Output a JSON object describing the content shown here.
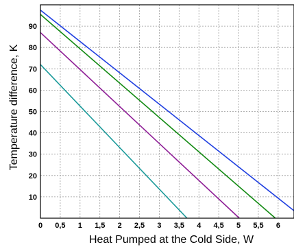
{
  "chart_data": {
    "type": "line",
    "title": "",
    "xlabel": "Heat Pumped at the Cold Side, W",
    "ylabel": "Temperature difference, K",
    "xlim": [
      0,
      6.4
    ],
    "ylim": [
      0,
      100
    ],
    "x_ticks": [
      "0",
      "0,5",
      "1",
      "1,5",
      "2",
      "2,5",
      "3",
      "3,5",
      "4",
      "4,5",
      "5",
      "5,5",
      "6"
    ],
    "x_tick_values": [
      0,
      0.5,
      1,
      1.5,
      2,
      2.5,
      3,
      3.5,
      4,
      4.5,
      5,
      5.5,
      6
    ],
    "y_ticks": [
      "10",
      "20",
      "30",
      "40",
      "50",
      "60",
      "70",
      "80",
      "90"
    ],
    "y_tick_values": [
      10,
      20,
      30,
      40,
      50,
      60,
      70,
      80,
      90
    ],
    "grid": true,
    "legend": "none",
    "series": [
      {
        "color": "#1f3fe0",
        "x": [
          0,
          6.4
        ],
        "y": [
          97.5,
          3.5
        ]
      },
      {
        "color": "#138a13",
        "x": [
          0,
          5.93
        ],
        "y": [
          95.5,
          0
        ]
      },
      {
        "color": "#8e1e96",
        "x": [
          0,
          5.02
        ],
        "y": [
          87,
          0
        ]
      },
      {
        "color": "#1b9a9a",
        "x": [
          0,
          3.7
        ],
        "y": [
          72,
          0
        ]
      }
    ]
  }
}
